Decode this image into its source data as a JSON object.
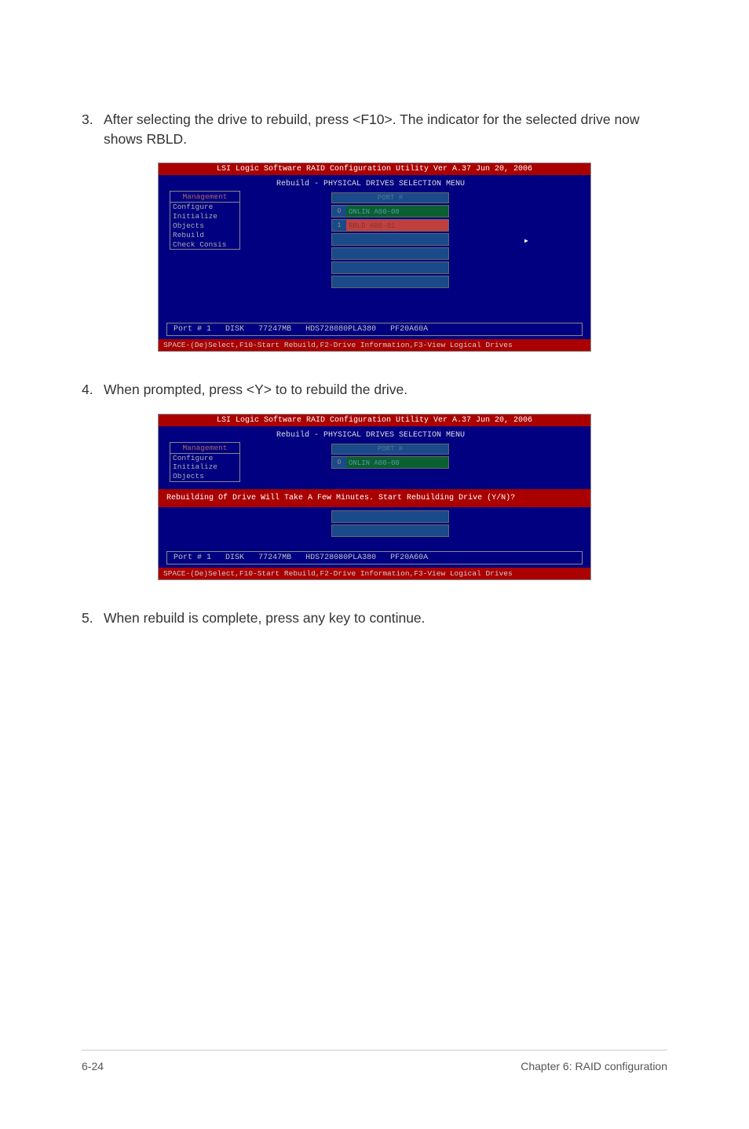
{
  "steps": {
    "s3": {
      "num": "3.",
      "text": "After selecting the drive to rebuild, press <F10>. The indicator for the selected drive now shows RBLD."
    },
    "s4": {
      "num": "4.",
      "text": "When prompted, press <Y> to to rebuild the drive."
    },
    "s5": {
      "num": "5.",
      "text": "When rebuild is complete, press any key to continue."
    }
  },
  "bios": {
    "title": "LSI Logic Software RAID Configuration Utility Ver A.37 Jun 20, 2006",
    "section_header": "Rebuild - PHYSICAL DRIVES SELECTION MENU",
    "menu": {
      "heading": "Management",
      "items": [
        "Configure",
        "Initialize",
        "Objects",
        "Rebuild",
        "Check Consis"
      ]
    },
    "port_header": "PORT #",
    "ports": {
      "row0": {
        "idx": "0",
        "val": "ONLIN A00-00"
      },
      "row1": {
        "idx": "1",
        "val": "RBLD A00-01"
      }
    },
    "cursor_glyph": "▸",
    "status": {
      "port": "Port # 1",
      "disk": "DISK",
      "size": "77247MB",
      "model": "HDS728080PLA380",
      "serial": "PF20A60A"
    },
    "footer": "SPACE-(De)Select,F10-Start Rebuild,F2-Drive Information,F3-View Logical Drives",
    "prompt": "Rebuilding Of Drive Will Take A Few Minutes. Start Rebuilding Drive (Y/N)?"
  },
  "menu2_items": [
    "Configure",
    "Initialize",
    "Objects"
  ],
  "page_footer": {
    "left": "6-24",
    "right": "Chapter 6: RAID configuration"
  },
  "colors": {
    "bios_bg": "#000080",
    "title_bg": "#aa0000",
    "green_cell": "#0a6030",
    "red_cell": "#c04040"
  }
}
